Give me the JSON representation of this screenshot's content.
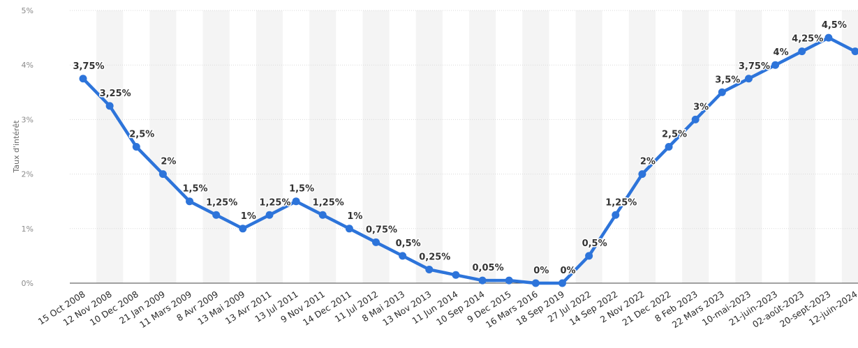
{
  "chart_data": {
    "type": "line",
    "ylabel": "Taux d'intérêt",
    "xlabel": "",
    "ylim": [
      0,
      5
    ],
    "y_ticks": [
      "0%",
      "1%",
      "2%",
      "3%",
      "4%",
      "5%"
    ],
    "grid": true,
    "line_color": "#2d74da",
    "band_color": "#f4f4f4",
    "categories": [
      "15 Oct 2008",
      "12 Nov 2008",
      "10 Dec 2008",
      "21 Jan 2009",
      "11 Mars 2009",
      "8 Avr 2009",
      "13 Mai 2009",
      "13 Avr 2011",
      "13 Jul 2011",
      "9 Nov 2011",
      "14 Dec 2011",
      "11 Jul 2012",
      "8 Mai 2013",
      "13 Nov 2013",
      "11 Jun 2014",
      "10 Sep 2014",
      "9 Dec 2015",
      "16 Mars 2016",
      "18 Sep 2019",
      "27 Jul 2022",
      "14 Sep 2022",
      "2 Nov 2022",
      "21 Dec 2022",
      "8 Feb 2023",
      "22 Mars 2023",
      "10-mai-2023",
      "21-juin-2023",
      "02-août-2023",
      "20-sept-2023",
      "12-juin-2024"
    ],
    "series": [
      {
        "values": [
          3.75,
          3.25,
          2.5,
          2,
          1.5,
          1.25,
          1,
          1.25,
          1.5,
          1.25,
          1,
          0.75,
          0.5,
          0.25,
          0.15,
          0.05,
          0.05,
          0,
          0,
          0.5,
          1.25,
          2,
          2.5,
          3,
          3.5,
          3.75,
          4,
          4.25,
          4.5,
          4.25
        ]
      }
    ],
    "points": [
      {
        "label": "3,75%"
      },
      {
        "label": "3,25%"
      },
      {
        "label": "2,5%"
      },
      {
        "label": "2%"
      },
      {
        "label": "1,5%"
      },
      {
        "label": "1,25%"
      },
      {
        "label": "1%"
      },
      {
        "label": "1,25%"
      },
      {
        "label": "1,5%"
      },
      {
        "label": "1,25%"
      },
      {
        "label": "1%"
      },
      {
        "label": "0,75%"
      },
      {
        "label": "0,5%"
      },
      {
        "label": "0,25%"
      },
      {
        "label": ""
      },
      {
        "label": "0,05%"
      },
      {
        "label": ""
      },
      {
        "label": "0%"
      },
      {
        "label": "0%"
      },
      {
        "label": "0,5%"
      },
      {
        "label": "1,25%"
      },
      {
        "label": "2%"
      },
      {
        "label": "2,5%"
      },
      {
        "label": "3%"
      },
      {
        "label": "3,5%"
      },
      {
        "label": "3,75%"
      },
      {
        "label": "4%"
      },
      {
        "label": "4,25%"
      },
      {
        "label": "4,5%"
      },
      {
        "label": ""
      }
    ]
  }
}
